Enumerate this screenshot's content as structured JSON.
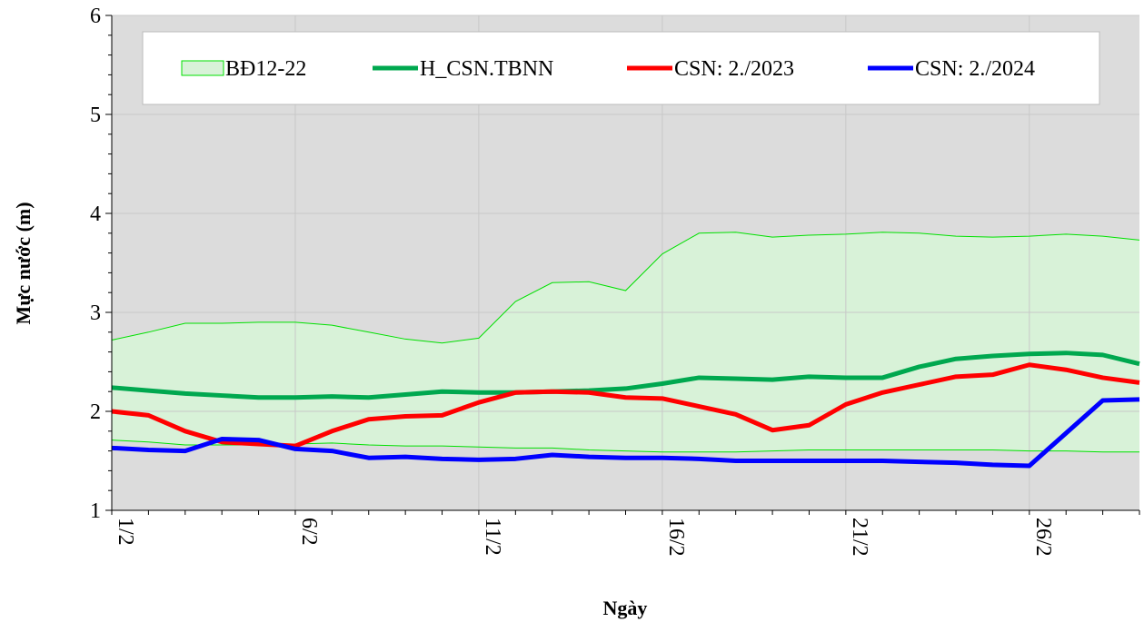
{
  "chart_data": {
    "type": "line",
    "y_label": "Mực nước (m)",
    "x_label": "Ngày",
    "categories": [
      "1/2",
      null,
      null,
      null,
      null,
      "6/2",
      null,
      null,
      null,
      null,
      "11/2",
      null,
      null,
      null,
      null,
      "16/2",
      null,
      null,
      null,
      null,
      "21/2",
      null,
      null,
      null,
      null,
      "26/2",
      null,
      null,
      null
    ],
    "ylim": [
      1,
      6
    ],
    "yticks": [
      1,
      2,
      3,
      4,
      5,
      6
    ],
    "grid": true,
    "series": [
      {
        "name": "BĐ12-22",
        "type": "band",
        "color": "#00e000",
        "fill": "#d8f2d8",
        "upper": [
          2.72,
          2.8,
          2.89,
          2.89,
          2.9,
          2.9,
          2.87,
          2.8,
          2.73,
          2.69,
          2.74,
          3.11,
          3.3,
          3.31,
          3.22,
          3.59,
          3.8,
          3.81,
          3.76,
          3.78,
          3.79,
          3.81,
          3.8,
          3.77,
          3.76,
          3.77,
          3.79,
          3.77,
          3.73
        ],
        "lower": [
          1.71,
          1.69,
          1.66,
          1.66,
          1.66,
          1.67,
          1.68,
          1.66,
          1.65,
          1.65,
          1.64,
          1.63,
          1.63,
          1.61,
          1.6,
          1.59,
          1.59,
          1.59,
          1.6,
          1.61,
          1.61,
          1.61,
          1.61,
          1.61,
          1.61,
          1.6,
          1.6,
          1.59,
          1.59
        ]
      },
      {
        "name": "H_CSN.TBNN",
        "color": "#00a84f",
        "values": [
          2.24,
          2.21,
          2.18,
          2.16,
          2.14,
          2.14,
          2.15,
          2.14,
          2.17,
          2.2,
          2.19,
          2.19,
          2.2,
          2.21,
          2.23,
          2.28,
          2.34,
          2.33,
          2.32,
          2.35,
          2.34,
          2.34,
          2.45,
          2.53,
          2.56,
          2.58,
          2.59,
          2.57,
          2.48
        ]
      },
      {
        "name": "CSN: 2./2023",
        "color": "#ff0000",
        "values": [
          2.0,
          1.96,
          1.8,
          1.69,
          1.67,
          1.65,
          1.8,
          1.92,
          1.95,
          1.96,
          2.09,
          2.19,
          2.2,
          2.19,
          2.14,
          2.13,
          2.05,
          1.97,
          1.81,
          1.86,
          2.07,
          2.19,
          2.27,
          2.35,
          2.37,
          2.47,
          2.42,
          2.34,
          2.29
        ]
      },
      {
        "name": "CSN: 2./2024",
        "color": "#0000ff",
        "values": [
          1.63,
          1.61,
          1.6,
          1.72,
          1.71,
          1.62,
          1.6,
          1.53,
          1.54,
          1.52,
          1.51,
          1.52,
          1.56,
          1.54,
          1.53,
          1.53,
          1.52,
          1.5,
          1.5,
          1.5,
          1.5,
          1.5,
          1.49,
          1.48,
          1.46,
          1.45,
          1.78,
          2.11,
          2.12
        ]
      }
    ]
  }
}
